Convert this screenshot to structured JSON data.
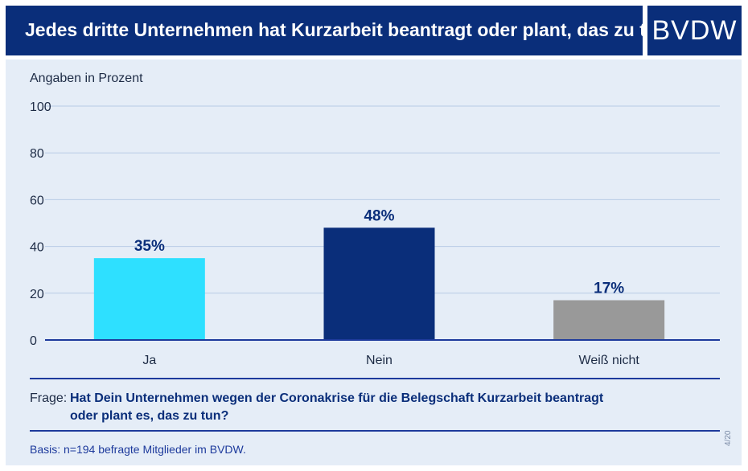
{
  "header": {
    "title": "Jedes dritte Unternehmen hat Kurzarbeit beantragt oder plant, das zu tun.",
    "logo": "BVDW"
  },
  "unit_label": "Angaben in Prozent",
  "question": {
    "prefix": "Frage:",
    "text": "Hat Dein Unternehmen wegen der Coronakrise für die Belegschaft Kurzarbeit beantragt oder plant es, das zu tun?"
  },
  "basis": "Basis: n=194 befragte Mitglieder im BVDW.",
  "page_number": "4/20",
  "colors": {
    "header_bg": "#0a2e7a",
    "panel_bg": "#e5edf7",
    "bar_ja": "#2ee0ff",
    "bar_nein": "#0a2e7a",
    "bar_weiss_nicht": "#999999",
    "axis": "#1d3a9c"
  },
  "chart_data": {
    "type": "bar",
    "categories": [
      "Ja",
      "Nein",
      "Weiß nicht"
    ],
    "values": [
      35,
      48,
      17
    ],
    "value_labels": [
      "35%",
      "48%",
      "17%"
    ],
    "bar_colors": [
      "#2ee0ff",
      "#0a2e7a",
      "#999999"
    ],
    "ylim": [
      0,
      100
    ],
    "yticks": [
      0,
      20,
      40,
      60,
      80,
      100
    ],
    "ylabel": "Angaben in Prozent",
    "grid": true
  }
}
